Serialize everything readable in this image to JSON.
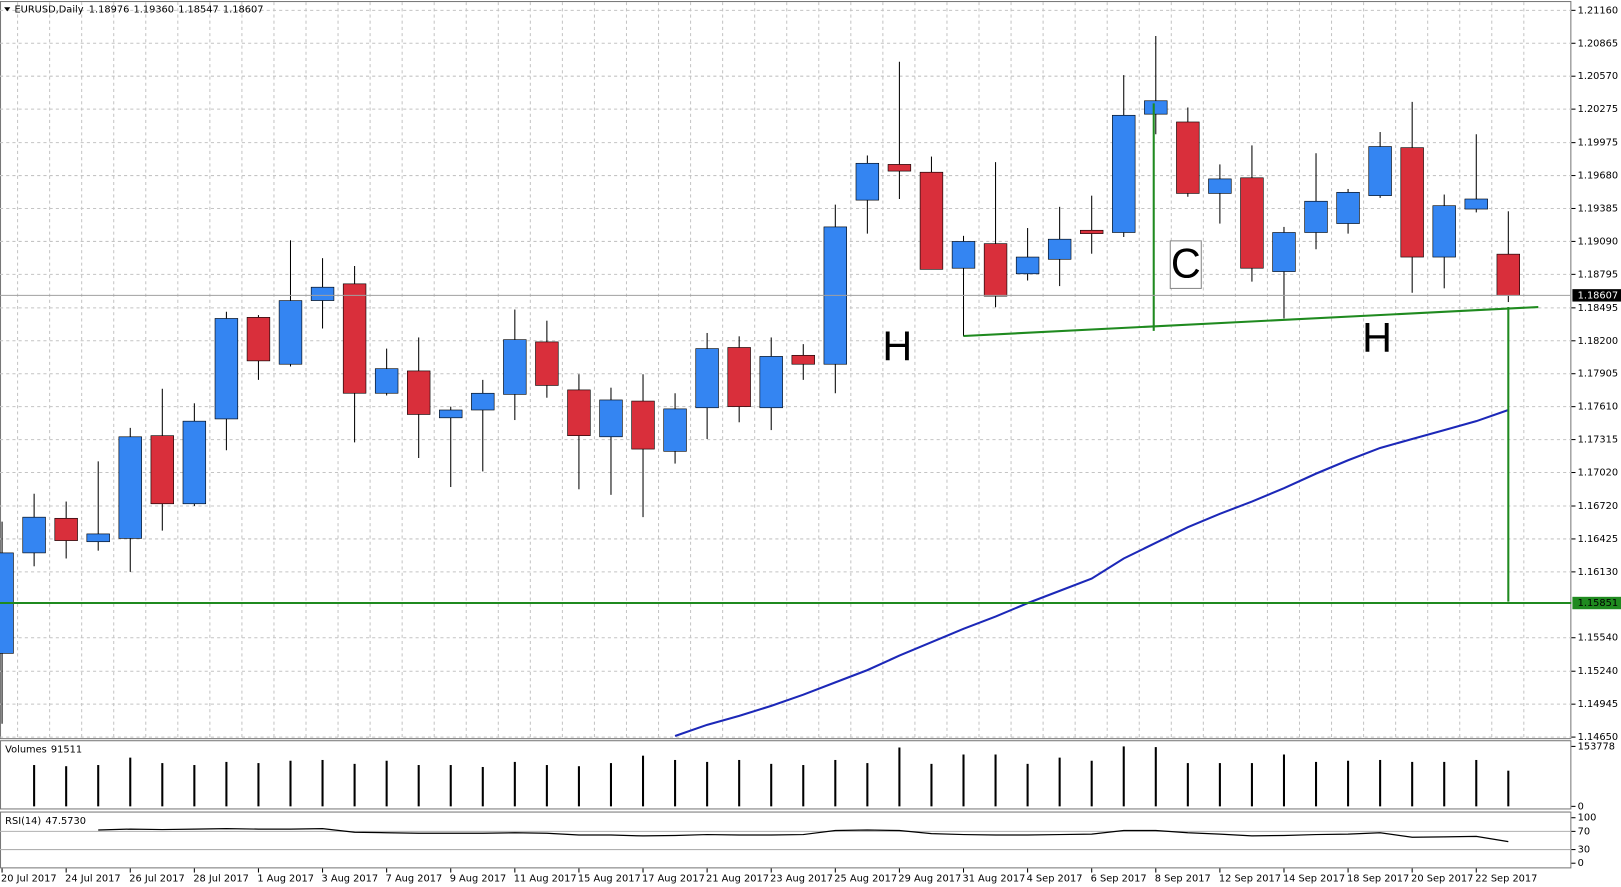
{
  "chart_data": [
    {
      "type": "candlestick",
      "title": "EURUSD,Daily",
      "header_values": [
        "1.18976",
        "1.19360",
        "1.18547",
        "1.18607"
      ],
      "categories": [
        "20 Jul 2017",
        null,
        "24 Jul 2017",
        null,
        "26 Jul 2017",
        null,
        "28 Jul 2017",
        null,
        "1 Aug 2017",
        null,
        "3 Aug 2017",
        null,
        "7 Aug 2017",
        null,
        "9 Aug 2017",
        null,
        "11 Aug 2017",
        null,
        "15 Aug 2017",
        null,
        "17 Aug 2017",
        null,
        "21 Aug 2017",
        null,
        "23 Aug 2017",
        null,
        "25 Aug 2017",
        null,
        "29 Aug 2017",
        null,
        "31 Aug 2017",
        null,
        "4 Sep 2017",
        null,
        "6 Sep 2017",
        null,
        "8 Sep 2017",
        null,
        "12 Sep 2017",
        null,
        "14 Sep 2017",
        null,
        "18 Sep 2017",
        null,
        "20 Sep 2017",
        null,
        "22 Sep 2017",
        null
      ],
      "open": [
        1.154,
        1.163,
        1.1661,
        1.164,
        1.1643,
        1.1735,
        1.1674,
        1.175,
        1.1841,
        1.1799,
        1.1856,
        1.1871,
        1.1773,
        1.1793,
        1.1751,
        1.1758,
        1.1772,
        1.1819,
        1.1776,
        1.1734,
        1.1766,
        1.1721,
        1.176,
        1.1814,
        1.176,
        1.1807,
        1.1799,
        1.1946,
        1.1978,
        1.1971,
        1.1885,
        1.1907,
        1.188,
        1.1893,
        1.1919,
        1.1917,
        1.2023,
        1.2016,
        1.1952,
        1.1966,
        1.1882,
        1.1917,
        1.1925,
        1.195,
        1.1993,
        1.1895,
        1.1938,
        1.18976
      ],
      "high": [
        1.1658,
        1.1683,
        1.1676,
        1.1712,
        1.1742,
        1.1777,
        1.1764,
        1.1846,
        1.1843,
        1.191,
        1.1894,
        1.1887,
        1.1813,
        1.1823,
        1.1761,
        1.1785,
        1.1848,
        1.1838,
        1.179,
        1.1778,
        1.179,
        1.1773,
        1.1827,
        1.1824,
        1.1823,
        1.1817,
        1.1942,
        1.1986,
        1.207,
        1.1985,
        1.1914,
        1.198,
        1.1921,
        1.194,
        1.195,
        1.2058,
        1.2093,
        1.2029,
        1.1978,
        1.1995,
        1.1922,
        1.1988,
        1.1956,
        1.2007,
        1.2034,
        1.1951,
        1.2005,
        1.1936
      ],
      "low": [
        1.1477,
        1.1618,
        1.1625,
        1.1632,
        1.1613,
        1.165,
        1.1672,
        1.1722,
        1.1785,
        1.1797,
        1.1831,
        1.1729,
        1.1771,
        1.1715,
        1.1689,
        1.1703,
        1.1749,
        1.1769,
        1.1687,
        1.1682,
        1.1662,
        1.171,
        1.1732,
        1.1747,
        1.174,
        1.1785,
        1.1773,
        1.1916,
        1.1947,
        1.1884,
        1.1824,
        1.185,
        1.1874,
        1.1869,
        1.1898,
        1.1913,
        1.2005,
        1.1949,
        1.1925,
        1.1873,
        1.184,
        1.1902,
        1.1916,
        1.1948,
        1.1863,
        1.1867,
        1.1935,
        1.18547
      ],
      "close": [
        1.163,
        1.1662,
        1.1641,
        1.1647,
        1.1734,
        1.1674,
        1.1748,
        1.184,
        1.1802,
        1.1856,
        1.1868,
        1.1773,
        1.1795,
        1.1754,
        1.1758,
        1.1773,
        1.1821,
        1.178,
        1.1735,
        1.1767,
        1.1723,
        1.1759,
        1.1813,
        1.1761,
        1.1806,
        1.1799,
        1.1922,
        1.1979,
        1.1972,
        1.1884,
        1.1909,
        1.186,
        1.1895,
        1.1911,
        1.1916,
        1.2022,
        1.2035,
        1.1952,
        1.1965,
        1.1885,
        1.1917,
        1.1945,
        1.1953,
        1.1994,
        1.1895,
        1.1941,
        1.1947,
        1.18607
      ],
      "up_color": "#3485f2",
      "down_color": "#d92f3b",
      "moving_average": {
        "color": "#1c28b8",
        "values": [
          null,
          null,
          null,
          null,
          null,
          null,
          null,
          null,
          null,
          null,
          null,
          null,
          null,
          null,
          null,
          null,
          null,
          null,
          null,
          null,
          null,
          1.1466,
          1.1476,
          1.1484,
          1.1493,
          1.1503,
          1.1514,
          1.1525,
          1.1538,
          1.155,
          1.1562,
          1.1573,
          1.1585,
          1.1596,
          1.1607,
          1.1625,
          1.1639,
          1.1653,
          1.1665,
          1.1676,
          1.1688,
          1.1701,
          1.1713,
          1.1724,
          1.1732,
          1.174,
          1.1748,
          1.1758
        ]
      },
      "levels": [
        {
          "value": 1.15851,
          "color": "#1f8a1f"
        }
      ],
      "annotations": [
        "H",
        "C",
        "H"
      ],
      "ylim": [
        1.1465,
        1.2116
      ],
      "yticks": [
        {
          "value": 1.2116,
          "label": "1.21160"
        },
        1.20865,
        {
          "value": 1.2057,
          "label": "1.20570"
        },
        1.20275,
        1.19975,
        {
          "value": 1.1968,
          "label": "1.19680"
        },
        1.19385,
        {
          "value": 1.1909,
          "label": "1.19090"
        },
        1.18795,
        1.18495,
        {
          "value": 1.182,
          "label": "1.18200"
        },
        1.17905,
        {
          "value": 1.1761,
          "label": "1.17610"
        },
        1.17315,
        {
          "value": 1.1702,
          "label": "1.17020"
        },
        {
          "value": 1.1672,
          "label": "1.16720"
        },
        1.16425,
        {
          "value": 1.1613,
          "label": "1.16130"
        },
        {
          "value": 1.1554,
          "label": "1.15540"
        },
        {
          "value": 1.1524,
          "label": "1.15240"
        },
        1.14945,
        {
          "value": 1.1465,
          "label": "1.14650"
        }
      ],
      "grid": true
    },
    {
      "type": "bar",
      "title": "Volumes",
      "color": "#000000",
      "values": [
        null,
        106000,
        103000,
        106000,
        125000,
        111000,
        106000,
        114000,
        111000,
        117000,
        119000,
        109000,
        117000,
        106000,
        106000,
        101000,
        114000,
        106000,
        103000,
        111000,
        130000,
        119000,
        114000,
        119000,
        109000,
        106000,
        119000,
        111000,
        151000,
        109000,
        133000,
        133000,
        109000,
        125000,
        117000,
        153778,
        152000,
        111000,
        111000,
        111000,
        133000,
        114000,
        117000,
        119000,
        114000,
        114000,
        119000,
        91511
      ],
      "ylim": [
        0,
        153778
      ],
      "yticks": [
        153778,
        0
      ]
    },
    {
      "type": "line",
      "title": "RSI(14)",
      "last_value_label": "47.5730",
      "color": "#000000",
      "values": [
        null,
        null,
        null,
        73,
        75,
        74,
        75,
        76,
        75,
        75,
        76,
        68,
        67,
        66,
        66,
        66,
        67,
        66,
        62,
        62,
        60,
        61,
        63,
        62,
        62,
        63,
        72,
        73,
        72,
        65,
        63,
        62,
        62,
        63,
        64,
        72,
        72,
        67,
        64,
        60,
        61,
        63,
        64,
        67,
        57,
        58,
        59,
        47.573
      ],
      "ylim": [
        0,
        100
      ],
      "yticks": [
        100,
        70,
        30,
        0
      ],
      "levels": [
        70,
        30
      ]
    }
  ]
}
